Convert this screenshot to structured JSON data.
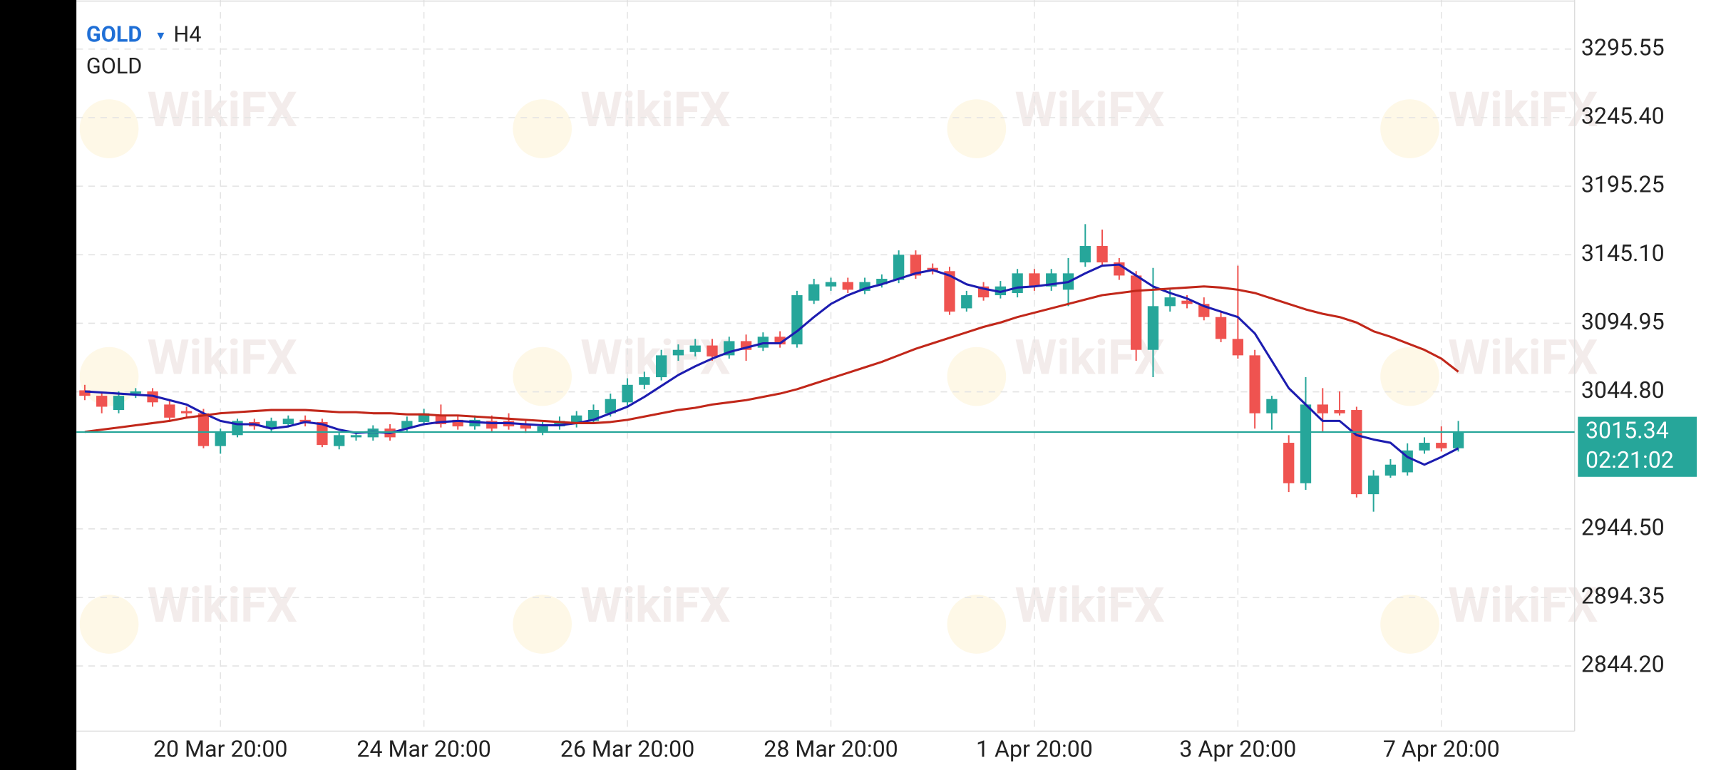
{
  "chart_data": {
    "type": "candlestick",
    "title": "GOLD",
    "dropdown_icon": "▾",
    "timeframe": "H4",
    "subtitle": "GOLD",
    "watermark": "WikiFX",
    "up_color": "#26a69a",
    "down_color": "#ef5350",
    "grid": true,
    "categories": [
      null,
      null,
      null,
      null,
      null,
      null,
      null,
      null,
      "20 Mar 20:00",
      null,
      null,
      null,
      null,
      null,
      null,
      null,
      null,
      null,
      null,
      null,
      "24 Mar 20:00",
      null,
      null,
      null,
      null,
      null,
      null,
      null,
      null,
      null,
      null,
      null,
      "26 Mar 20:00",
      null,
      null,
      null,
      null,
      null,
      null,
      null,
      null,
      null,
      null,
      null,
      "28 Mar 20:00",
      null,
      null,
      null,
      null,
      null,
      null,
      null,
      null,
      null,
      null,
      null,
      "1 Apr 20:00",
      null,
      null,
      null,
      null,
      null,
      null,
      null,
      null,
      null,
      null,
      null,
      "3 Apr 20:00",
      null,
      null,
      null,
      null,
      null,
      null,
      null,
      null,
      null,
      null,
      null,
      "7 Apr 20:00",
      null
    ],
    "open": [
      3045.9,
      3041.9,
      3031.5,
      3043.5,
      3045.1,
      3035.5,
      3030.7,
      3029.1,
      3005.1,
      3013.1,
      3022.7,
      3017.9,
      3021.1,
      3024.3,
      3022.7,
      3005.1,
      3011.5,
      3011.5,
      3017.9,
      3017.9,
      3022.7,
      3027.5,
      3024.3,
      3019.5,
      3023.5,
      3023.5,
      3021.1,
      3015.5,
      3019.5,
      3021.1,
      3023.5,
      3029.1,
      3037.1,
      3049.9,
      3055.5,
      3071.5,
      3073.9,
      3078.7,
      3071.5,
      3081.9,
      3077.1,
      3085.1,
      3079.5,
      3111.5,
      3121.9,
      3125.1,
      3118.7,
      3123.5,
      3126.7,
      3145.1,
      3135.5,
      3133.1,
      3105.9,
      3121.9,
      3115.5,
      3117.1,
      3131.5,
      3121.9,
      3119.5,
      3139.5,
      3151.5,
      3139.5,
      3129.9,
      3075.5,
      3107.5,
      3111.5,
      3109.1,
      3099.5,
      3083.5,
      3071.5,
      3029.1,
      3007.5,
      2977.9,
      3035.5,
      3031.5,
      3031.5,
      2969.9,
      2983.5,
      2985.9,
      3001.9,
      3007.5,
      3003.5
    ],
    "high": [
      3049.9,
      3045.1,
      3045.1,
      3047.5,
      3047.5,
      3038.7,
      3033.9,
      3032.3,
      3017.9,
      3025.1,
      3025.1,
      3025.9,
      3027.5,
      3027.5,
      3025.1,
      3015.5,
      3014.7,
      3020.3,
      3021.1,
      3026.7,
      3032.3,
      3035.5,
      3027.5,
      3027.5,
      3027.5,
      3029.1,
      3024.3,
      3022.7,
      3026.7,
      3030.7,
      3035.5,
      3043.5,
      3054.7,
      3059.5,
      3075.5,
      3079.5,
      3083.5,
      3083.5,
      3085.1,
      3086.7,
      3088.3,
      3089.1,
      3118.7,
      3127.5,
      3128.3,
      3128.3,
      3128.3,
      3130.7,
      3148.3,
      3148.3,
      3138.7,
      3136.3,
      3118.7,
      3125.1,
      3125.9,
      3134.7,
      3134.7,
      3134.7,
      3142.7,
      3167.5,
      3163.5,
      3142.7,
      3133.1,
      3135.5,
      3119.5,
      3115.5,
      3113.9,
      3103.5,
      3137.1,
      3075.5,
      3041.9,
      3013.1,
      3055.5,
      3047.5,
      3045.1,
      3033.9,
      2987.5,
      2995.5,
      3007.1,
      3011.5,
      3019.5,
      3023.5
    ],
    "low": [
      3038.7,
      3029.1,
      3029.1,
      3040.3,
      3033.9,
      3022.7,
      3025.9,
      3003.5,
      2999.5,
      3011.5,
      3017.1,
      3015.5,
      3018.7,
      3019.5,
      3004.3,
      3002.7,
      3009.1,
      3009.1,
      3009.1,
      3015.5,
      3020.3,
      3018.7,
      3017.1,
      3017.1,
      3015.5,
      3017.1,
      3014.7,
      3013.1,
      3017.1,
      3018.7,
      3021.1,
      3026.7,
      3034.7,
      3046.7,
      3053.1,
      3067.5,
      3070.7,
      3067.5,
      3069.1,
      3067.5,
      3074.7,
      3077.1,
      3077.1,
      3109.1,
      3118.7,
      3117.1,
      3116.3,
      3121.1,
      3124.3,
      3127.5,
      3130.7,
      3101.1,
      3103.5,
      3111.5,
      3113.1,
      3113.9,
      3118.7,
      3118.7,
      3107.5,
      3136.3,
      3136.3,
      3126.7,
      3067.5,
      3055.5,
      3103.5,
      3105.9,
      3097.1,
      3081.1,
      3069.1,
      3017.9,
      3017.1,
      2971.5,
      2973.1,
      3015.5,
      3027.5,
      2967.5,
      2957.1,
      2981.9,
      2983.5,
      2999.5,
      3001.1,
      3001.1
    ],
    "close": [
      3041.9,
      3033.9,
      3041.9,
      3045.1,
      3037.1,
      3025.9,
      3029.1,
      3005.1,
      3015.5,
      3023.5,
      3019.5,
      3023.5,
      3025.1,
      3022.7,
      3005.9,
      3013.1,
      3013.1,
      3017.9,
      3011.5,
      3023.5,
      3029.1,
      3021.1,
      3019.5,
      3024.3,
      3017.9,
      3019.5,
      3017.9,
      3019.5,
      3023.5,
      3027.5,
      3031.5,
      3039.5,
      3049.9,
      3055.5,
      3071.5,
      3075.5,
      3078.7,
      3070.7,
      3081.9,
      3075.5,
      3085.1,
      3079.5,
      3115.5,
      3123.5,
      3125.1,
      3119.5,
      3125.1,
      3127.5,
      3145.1,
      3129.9,
      3133.1,
      3103.5,
      3115.5,
      3113.9,
      3121.9,
      3131.5,
      3121.9,
      3131.5,
      3131.5,
      3151.5,
      3139.5,
      3129.9,
      3075.5,
      3107.5,
      3113.9,
      3109.1,
      3099.5,
      3083.5,
      3071.5,
      3029.1,
      3039.5,
      2977.9,
      3035.5,
      3029.1,
      3029.1,
      2969.9,
      2983.5,
      2991.5,
      3001.9,
      3007.5,
      3003.5,
      3015.34
    ],
    "series": [
      {
        "color": "#1c1cb0",
        "values": [
          3045.1,
          3044.3,
          3043.5,
          3042.7,
          3041.9,
          3038.7,
          3035.5,
          3029.1,
          3023.5,
          3021.1,
          3021.1,
          3017.9,
          3019.5,
          3022.7,
          3021.1,
          3017.1,
          3014.7,
          3015.5,
          3014.7,
          3017.9,
          3021.1,
          3022.7,
          3023.5,
          3022.7,
          3021.9,
          3021.9,
          3021.1,
          3020.3,
          3020.3,
          3021.9,
          3024.3,
          3029.1,
          3033.9,
          3041.1,
          3049.1,
          3057.1,
          3063.5,
          3069.1,
          3073.9,
          3077.1,
          3080.3,
          3080.3,
          3089.1,
          3099.5,
          3109.1,
          3115.5,
          3120.3,
          3123.5,
          3127.5,
          3131.5,
          3133.9,
          3129.9,
          3123.5,
          3120.3,
          3117.9,
          3121.1,
          3121.9,
          3123.5,
          3125.1,
          3131.5,
          3137.1,
          3137.9,
          3129.9,
          3121.9,
          3117.1,
          3113.1,
          3107.5,
          3103.5,
          3099.5,
          3087.5,
          3067.5,
          3047.5,
          3035.5,
          3023.5,
          3023.5,
          3013.1,
          3009.9,
          3007.5,
          2997.1,
          2991.5,
          2997.1,
          3003.5
        ]
      },
      {
        "color": "#c1271a",
        "values": [
          3015.5,
          3017.1,
          3018.7,
          3020.3,
          3021.9,
          3023.5,
          3025.9,
          3027.5,
          3029.1,
          3029.9,
          3030.7,
          3031.5,
          3031.5,
          3031.5,
          3030.7,
          3029.9,
          3029.9,
          3029.1,
          3029.1,
          3028.3,
          3028.3,
          3027.5,
          3027.5,
          3026.7,
          3025.9,
          3025.1,
          3024.3,
          3023.5,
          3022.7,
          3021.9,
          3021.9,
          3022.7,
          3024.3,
          3026.7,
          3029.1,
          3031.5,
          3033.1,
          3035.5,
          3037.1,
          3038.7,
          3041.1,
          3043.5,
          3046.7,
          3050.7,
          3054.7,
          3058.7,
          3062.7,
          3066.7,
          3071.5,
          3076.3,
          3080.3,
          3084.3,
          3088.3,
          3092.3,
          3095.5,
          3099.5,
          3102.7,
          3105.9,
          3109.1,
          3112.3,
          3115.5,
          3117.1,
          3118.7,
          3119.5,
          3120.3,
          3121.1,
          3121.9,
          3121.1,
          3119.5,
          3117.1,
          3113.1,
          3109.1,
          3105.1,
          3101.9,
          3099.5,
          3095.5,
          3089.1,
          3085.1,
          3080.3,
          3075.5,
          3069.1,
          3059.5
        ]
      }
    ],
    "last_price": {
      "value": 3015.34,
      "countdown": "02:21:02",
      "color": "#26a69a"
    },
    "ylim": [
      2796.5,
      3331.5
    ],
    "yticks": [
      {
        "value": 2844.2,
        "label": "2844.20"
      },
      2894.35,
      {
        "value": 2944.5,
        "label": "2944.50"
      },
      {
        "value": 3044.8,
        "label": "3044.80"
      },
      3094.95,
      {
        "value": 3145.1,
        "label": "3145.10"
      },
      3195.25,
      {
        "value": 3245.4,
        "label": "3245.40"
      },
      3295.55
    ]
  }
}
